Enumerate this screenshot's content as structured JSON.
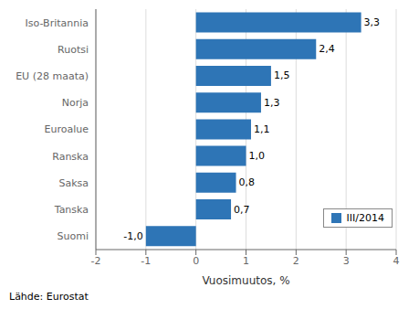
{
  "chart_data": {
    "type": "bar",
    "orientation": "horizontal",
    "categories": [
      "Suomi",
      "Tanska",
      "Saksa",
      "Ranska",
      "Euroalue",
      "Norja",
      "EU (28 maata)",
      "Ruotsi",
      "Iso-Britannia"
    ],
    "series": [
      {
        "name": "III/2014",
        "color": "#2E75B6",
        "values": [
          -1.0,
          0.7,
          0.8,
          1.0,
          1.1,
          1.3,
          1.5,
          2.4,
          3.3
        ],
        "value_labels": [
          "-1,0",
          "0,7",
          "0,8",
          "1,0",
          "1,1",
          "1,3",
          "1,5",
          "2,4",
          "3,3"
        ]
      }
    ],
    "data_labels": true,
    "xlabel": "Vuosimuutos, %",
    "xlim": [
      -2,
      4
    ],
    "xticks": [
      -2,
      -1,
      0,
      1,
      2,
      3,
      4
    ],
    "grid": true,
    "legend": "lower right",
    "annotations": [
      "Lähde: Eurostat"
    ]
  }
}
